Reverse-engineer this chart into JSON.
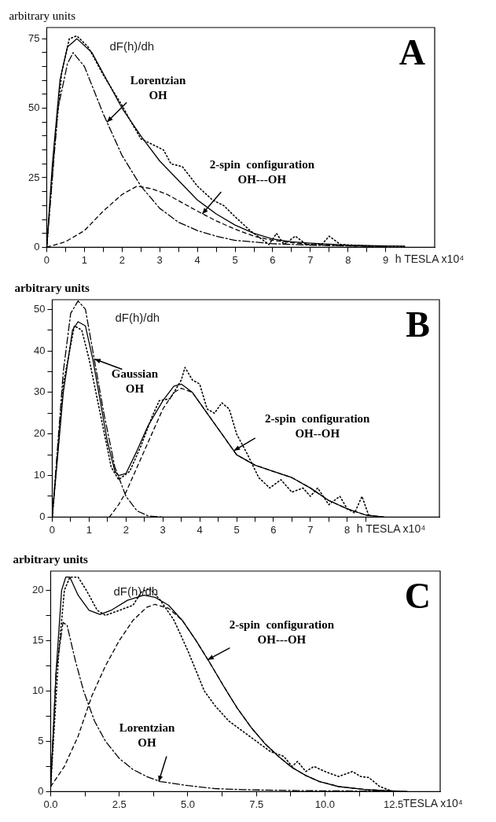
{
  "chart_data": [
    {
      "type": "line",
      "title": "A",
      "xlabel": "h TESLA x10⁴",
      "ylabel": "arbitrary units",
      "xlim": [
        0,
        10.3
      ],
      "ylim": [
        0,
        79
      ],
      "xticks": [
        0,
        {
          "value": 0.5,
          "label": null
        },
        1,
        {
          "value": 1.5,
          "label": null
        },
        2,
        {
          "value": 2.5,
          "label": null
        },
        3,
        {
          "value": 3.5,
          "label": null
        },
        4,
        {
          "value": 4.5,
          "label": null
        },
        5,
        {
          "value": 5.5,
          "label": null
        },
        6,
        {
          "value": 6.5,
          "label": null
        },
        7,
        {
          "value": 7.5,
          "label": null
        },
        8,
        {
          "value": 8.5,
          "label": null
        },
        9
      ],
      "yticks": [
        0,
        {
          "value": 5,
          "label": null
        },
        {
          "value": 10,
          "label": null
        },
        {
          "value": 15,
          "label": null
        },
        {
          "value": 20,
          "label": null
        },
        25,
        {
          "value": 30,
          "label": null
        },
        {
          "value": 35,
          "label": null
        },
        {
          "value": 40,
          "label": null
        },
        {
          "value": 45,
          "label": null
        },
        50,
        {
          "value": 55,
          "label": null
        },
        {
          "value": 60,
          "label": null
        },
        {
          "value": 65,
          "label": null
        },
        {
          "value": 70,
          "label": null
        },
        75
      ],
      "grid": false,
      "legend": false,
      "marker": "none",
      "annotations": [
        "dF(h)/dh",
        {
          "text": "Lorentzian\nOH",
          "x": 1.6,
          "y": 45
        },
        {
          "text": "2-spin  configuration\nOH---OH",
          "x": 4.13,
          "y": 12
        }
      ],
      "series": [
        {
          "color": "#000000",
          "line_style": "dotted",
          "x": [
            0,
            0.2,
            0.4,
            0.6,
            0.8,
            1.1,
            1.5,
            2,
            2.2,
            2.5,
            2.8,
            3.1,
            3.3,
            3.6,
            4,
            4.4,
            4.7,
            5,
            5.4,
            5.7,
            5.9,
            6.1,
            6.3,
            6.6,
            6.9,
            7.3,
            7.5,
            7.8,
            8.5,
            9.5
          ],
          "values": [
            0,
            35,
            63,
            75,
            76,
            72,
            62,
            51,
            46,
            39,
            37,
            35,
            30,
            29,
            22,
            17,
            15,
            11,
            6,
            3,
            1,
            5,
            1,
            4,
            1,
            1,
            4,
            1,
            0.5,
            0.3
          ]
        },
        {
          "color": "#000000",
          "line_style": "solid",
          "x": [
            0,
            0.15,
            0.35,
            0.55,
            0.8,
            1.2,
            1.6,
            2,
            2.5,
            3,
            3.5,
            4,
            4.5,
            5,
            5.5,
            6,
            6.5,
            7,
            8,
            9,
            9.5
          ],
          "values": [
            0,
            30,
            60,
            72,
            75,
            70,
            60,
            50,
            40,
            31,
            24,
            17,
            12,
            8,
            5,
            3,
            2,
            1.5,
            0.8,
            0.5,
            0.4
          ]
        },
        {
          "color": "#000000",
          "line_style": "dashdot",
          "x": [
            0,
            0.3,
            0.55,
            0.7,
            1,
            1.5,
            2,
            2.5,
            3,
            3.5,
            4,
            4.5,
            5,
            6,
            7,
            8,
            9
          ],
          "values": [
            0,
            50,
            66,
            70,
            65,
            48,
            33,
            22,
            14,
            9,
            6,
            4,
            2.5,
            1.3,
            0.8,
            0.5,
            0.3
          ]
        },
        {
          "color": "#000000",
          "line_style": "dashed",
          "x": [
            0,
            0.5,
            1,
            1.5,
            2,
            2.4,
            2.8,
            3.2,
            3.6,
            4,
            4.5,
            5,
            5.5,
            6,
            6.5,
            7,
            8,
            9
          ],
          "values": [
            0,
            2,
            6,
            13,
            19,
            22,
            21,
            19,
            16,
            13,
            9.5,
            6.5,
            4,
            2.5,
            1.7,
            1,
            0.5,
            0.3
          ]
        }
      ]
    },
    {
      "type": "line",
      "title": "B",
      "xlabel": "h TESLA x10⁴",
      "ylabel": "arbitrary units",
      "xlim": [
        0,
        10.5
      ],
      "ylim": [
        0,
        52.3
      ],
      "xticks": [
        0,
        {
          "value": 0.5,
          "label": null
        },
        1,
        {
          "value": 1.5,
          "label": null
        },
        2,
        {
          "value": 2.5,
          "label": null
        },
        3,
        {
          "value": 3.5,
          "label": null
        },
        4,
        {
          "value": 4.5,
          "label": null
        },
        5,
        {
          "value": 5.5,
          "label": null
        },
        6,
        {
          "value": 6.5,
          "label": null
        },
        7,
        {
          "value": 7.5,
          "label": null
        },
        8,
        {
          "value": 8.5,
          "label": null
        }
      ],
      "yticks": [
        0,
        {
          "value": 5,
          "label": null
        },
        10,
        {
          "value": 15,
          "label": null
        },
        20,
        {
          "value": 25,
          "label": null
        },
        30,
        {
          "value": 35,
          "label": null
        },
        40,
        {
          "value": 45,
          "label": null
        },
        50
      ],
      "grid": false,
      "legend": false,
      "marker": "none",
      "annotations": [
        "dF(h)/dh",
        {
          "text": "Gaussian\nOH",
          "x": 1.15,
          "y": 38
        },
        {
          "text": "2-spin  configuration\nOH--OH",
          "x": 4.93,
          "y": 16
        }
      ],
      "series": [
        {
          "color": "#000000",
          "line_style": "dotted",
          "x": [
            0,
            0.3,
            0.6,
            0.8,
            1,
            1.3,
            1.6,
            1.8,
            2.1,
            2.4,
            2.7,
            2.9,
            3.2,
            3.5,
            3.6,
            3.8,
            4,
            4.2,
            4.4,
            4.6,
            4.8,
            5,
            5.3,
            5.6,
            5.9,
            6.2,
            6.5,
            6.8,
            7,
            7.2,
            7.5,
            7.8,
            8,
            8.2,
            8.4,
            8.6
          ],
          "values": [
            0,
            32,
            46,
            45,
            38,
            25,
            12,
            9,
            11,
            17,
            24,
            28,
            28.5,
            33,
            36,
            33,
            32,
            26,
            25,
            27.5,
            26,
            20,
            15,
            9.5,
            7,
            9,
            6,
            7,
            5,
            7,
            3,
            5,
            2,
            1,
            5,
            0
          ]
        },
        {
          "color": "#000000",
          "line_style": "solid",
          "x": [
            0,
            0.3,
            0.55,
            0.7,
            0.9,
            1.1,
            1.3,
            1.5,
            1.7,
            1.8,
            2,
            2.3,
            2.6,
            3,
            3.3,
            3.5,
            3.8,
            4.2,
            4.6,
            5,
            5.5,
            6,
            6.5,
            7,
            7.5,
            8,
            8.5,
            9
          ],
          "values": [
            0,
            30,
            45,
            47,
            46,
            38,
            28,
            18,
            11,
            10,
            10.5,
            16,
            22,
            28,
            31.5,
            32,
            30,
            25,
            20,
            15,
            12.5,
            11,
            9.5,
            7,
            4,
            2,
            0.5,
            0
          ]
        },
        {
          "color": "#000000",
          "line_style": "dashdot",
          "x": [
            0,
            0.3,
            0.5,
            0.7,
            0.9,
            1.1,
            1.4,
            1.7,
            2,
            2.3,
            2.6,
            3
          ],
          "values": [
            0,
            35,
            49,
            52,
            50,
            40,
            25,
            12,
            5,
            1.5,
            0.3,
            0
          ]
        },
        {
          "color": "#000000",
          "line_style": "dashed",
          "x": [
            1.55,
            1.8,
            2,
            2.3,
            2.6,
            3,
            3.3,
            3.5,
            3.8,
            4.2,
            4.6,
            5,
            5.5,
            6,
            6.5,
            7,
            7.5,
            8,
            8.5,
            9
          ],
          "values": [
            0,
            3,
            6,
            12,
            18,
            26,
            30,
            31,
            30,
            25,
            20,
            15,
            12.5,
            11,
            9.5,
            7,
            4,
            2,
            0.5,
            0
          ]
        }
      ]
    },
    {
      "type": "line",
      "title": "C",
      "xlabel": "TESLA x10⁴",
      "ylabel": "arbitrary units",
      "xlim": [
        0,
        14.2
      ],
      "ylim": [
        0,
        21.9
      ],
      "xticks": [
        {
          "value": 0,
          "label": "0.0"
        },
        {
          "value": 1.25,
          "label": null
        },
        {
          "value": 2.5,
          "label": "2.5"
        },
        {
          "value": 3.75,
          "label": null
        },
        {
          "value": 5,
          "label": "5.0"
        },
        {
          "value": 6.25,
          "label": null
        },
        {
          "value": 7.5,
          "label": "7.5"
        },
        {
          "value": 8.75,
          "label": null
        },
        {
          "value": 10,
          "label": "10.0"
        },
        {
          "value": 11.25,
          "label": null
        },
        {
          "value": 12.5,
          "label": "12.5"
        }
      ],
      "yticks": [
        0,
        {
          "value": 2.5,
          "label": null
        },
        5,
        {
          "value": 7.5,
          "label": null
        },
        10,
        {
          "value": 12.5,
          "label": null
        },
        15,
        {
          "value": 17.5,
          "label": null
        },
        20
      ],
      "grid": false,
      "legend": false,
      "marker": "none",
      "annotations": [
        "dF(h)/dh",
        {
          "text": "Lorentzian\nOH",
          "x": 3.94,
          "y": 1
        },
        {
          "text": "2-spin  configuration\nOH---OH",
          "x": 5.73,
          "y": 13.1
        }
      ],
      "series": [
        {
          "color": "#000000",
          "line_style": "dotted",
          "x": [
            0,
            0.3,
            0.5,
            0.7,
            1,
            1.3,
            1.7,
            2,
            2.5,
            3,
            3.3,
            3.6,
            4,
            4.5,
            5,
            5.3,
            5.6,
            6,
            6.5,
            7,
            7.5,
            8,
            8.5,
            8.8,
            9,
            9.3,
            9.6,
            10,
            10.5,
            11,
            11.3,
            11.6,
            12,
            12.5,
            13
          ],
          "values": [
            0.5,
            14,
            20,
            21.3,
            21.3,
            20,
            18,
            17.5,
            18,
            18.5,
            19.8,
            20.2,
            19,
            17,
            14,
            12,
            10,
            8.5,
            7,
            6,
            5,
            4,
            3.5,
            2.5,
            3,
            2,
            2.5,
            2,
            1.5,
            2,
            1.5,
            1.4,
            0.5,
            0,
            0
          ]
        },
        {
          "color": "#000000",
          "line_style": "solid",
          "x": [
            0,
            0.2,
            0.4,
            0.55,
            0.7,
            1,
            1.4,
            1.8,
            2.2,
            2.8,
            3.4,
            3.8,
            4.3,
            4.8,
            5.3,
            5.8,
            6.3,
            6.8,
            7.3,
            7.8,
            8.3,
            8.8,
            9.3,
            9.8,
            10.5,
            11.5,
            13
          ],
          "values": [
            0.5,
            12,
            20,
            21.3,
            21.3,
            19.5,
            18,
            17.6,
            18,
            19,
            19.5,
            19.3,
            18.5,
            17,
            15,
            12.8,
            10.5,
            8.3,
            6.4,
            4.8,
            3.5,
            2.4,
            1.6,
            1,
            0.5,
            0.2,
            0
          ]
        },
        {
          "color": "#000000",
          "line_style": "dashdot",
          "x": [
            0,
            0.2,
            0.45,
            0.6,
            0.9,
            1.2,
            1.6,
            2,
            2.5,
            3,
            3.5,
            4,
            5,
            6,
            7,
            9,
            12
          ],
          "values": [
            0.5,
            12,
            16.8,
            16.5,
            13,
            10,
            7,
            5,
            3.3,
            2.2,
            1.5,
            1,
            0.6,
            0.3,
            0.2,
            0.1,
            0.05
          ]
        },
        {
          "color": "#000000",
          "line_style": "dashed",
          "x": [
            0,
            0.5,
            1,
            1.5,
            2,
            2.5,
            3,
            3.5,
            3.8,
            4.3,
            4.8,
            5.3,
            5.8,
            6.3,
            6.8,
            7.3,
            7.8,
            8.3,
            8.8,
            9.3,
            9.8,
            10.5,
            11.5,
            13
          ],
          "values": [
            0.5,
            2.5,
            5.5,
            9.5,
            12.5,
            15,
            17,
            18.3,
            18.6,
            18.2,
            17,
            15,
            12.8,
            10.5,
            8.3,
            6.4,
            4.8,
            3.5,
            2.4,
            1.6,
            1,
            0.5,
            0.2,
            0
          ]
        }
      ]
    }
  ]
}
